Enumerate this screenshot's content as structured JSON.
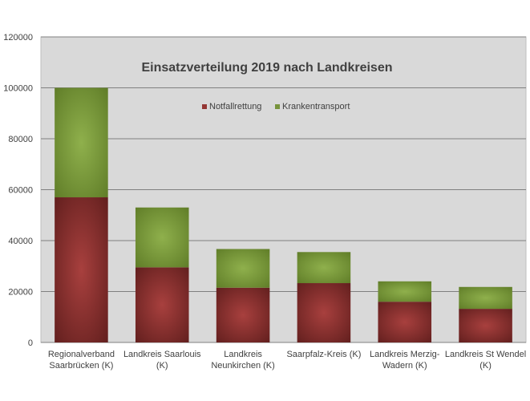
{
  "chart_data": {
    "type": "bar",
    "stacked": true,
    "title": "Einsatzverteilung 2019 nach Landkreisen",
    "categories": [
      [
        "Regionalverband",
        "Saarbrücken (K)"
      ],
      [
        "Landkreis Saarlouis",
        "(K)"
      ],
      [
        "Landkreis",
        "Neunkirchen (K)"
      ],
      [
        "Saarpfalz-Kreis (K)"
      ],
      [
        "Landkreis Merzig-",
        "Wadern (K)"
      ],
      [
        "Landkreis St Wendel",
        "(K)"
      ]
    ],
    "series": [
      {
        "name": "Notfallrettung",
        "values": [
          57000,
          29500,
          21500,
          23300,
          16000,
          13200
        ],
        "color": "#943634"
      },
      {
        "name": "Krankentransport",
        "values": [
          43000,
          23500,
          15200,
          12200,
          8000,
          8600
        ],
        "color": "#77933c"
      }
    ],
    "ylim": [
      0,
      120000
    ],
    "yticks": [
      "0",
      "20000",
      "40000",
      "60000",
      "80000",
      "100000",
      "120000"
    ],
    "ytick_values": [
      0,
      20000,
      40000,
      60000,
      80000,
      100000,
      120000
    ],
    "grid": true,
    "plot_background": "#d9d9d9",
    "legend_position": "top-center"
  }
}
